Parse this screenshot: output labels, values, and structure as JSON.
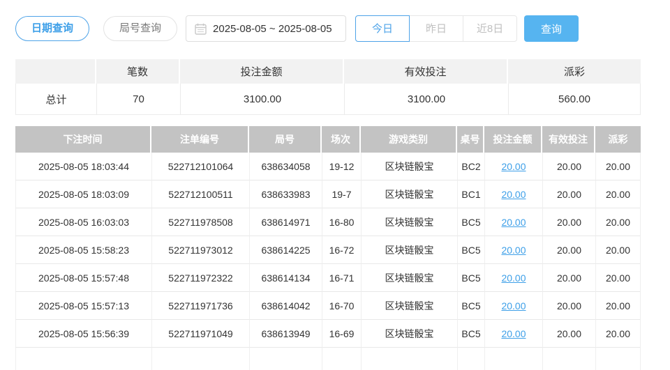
{
  "toolbar": {
    "tabs": [
      {
        "label": "日期查询",
        "active": true
      },
      {
        "label": "局号查询",
        "active": false
      }
    ],
    "date_range": {
      "value": "2025-08-05 ~ 2025-08-05",
      "icon": "calendar-icon"
    },
    "quick_buttons": [
      {
        "label": "今日",
        "active": true
      },
      {
        "label": "昨日",
        "active": false
      },
      {
        "label": "近8日",
        "active": false
      }
    ],
    "search_label": "查询"
  },
  "summary": {
    "columns": [
      "",
      "笔数",
      "投注金额",
      "有效投注",
      "派彩"
    ],
    "row": {
      "label": "总计",
      "count": "70",
      "bet_amount": "3100.00",
      "valid_bet": "3100.00",
      "payout": "560.00"
    }
  },
  "table": {
    "columns": [
      "下注时间",
      "注单编号",
      "局号",
      "场次",
      "游戏类别",
      "桌号",
      "投注金额",
      "有效投注",
      "派彩"
    ],
    "column_keys": [
      "bet-time",
      "order-no",
      "round-no",
      "session",
      "game-type",
      "table-no",
      "bet-amount",
      "valid-bet",
      "payout"
    ],
    "link_column_index": 6,
    "rows": [
      [
        "2025-08-05 18:03:44",
        "522712101064",
        "638634058",
        "19-12",
        "区块链骰宝",
        "BC2",
        "20.00",
        "20.00",
        "20.00"
      ],
      [
        "2025-08-05 18:03:09",
        "522712100511",
        "638633983",
        "19-7",
        "区块链骰宝",
        "BC1",
        "20.00",
        "20.00",
        "20.00"
      ],
      [
        "2025-08-05 16:03:03",
        "522711978508",
        "638614971",
        "16-80",
        "区块链骰宝",
        "BC5",
        "20.00",
        "20.00",
        "20.00"
      ],
      [
        "2025-08-05 15:58:23",
        "522711973012",
        "638614225",
        "16-72",
        "区块链骰宝",
        "BC5",
        "20.00",
        "20.00",
        "20.00"
      ],
      [
        "2025-08-05 15:57:48",
        "522711972322",
        "638614134",
        "16-71",
        "区块链骰宝",
        "BC5",
        "20.00",
        "20.00",
        "20.00"
      ],
      [
        "2025-08-05 15:57:13",
        "522711971736",
        "638614042",
        "16-70",
        "区块链骰宝",
        "BC5",
        "20.00",
        "20.00",
        "20.00"
      ],
      [
        "2025-08-05 15:56:39",
        "522711971049",
        "638613949",
        "16-69",
        "区块链骰宝",
        "BC5",
        "20.00",
        "20.00",
        "20.00"
      ]
    ]
  },
  "colors": {
    "accent_blue": "#4da3e8",
    "button_blue": "#56b4f0",
    "link_blue": "#3d9fe8",
    "table_header_gray": "#c3c3c3",
    "summary_header_gray": "#f2f2f2"
  }
}
